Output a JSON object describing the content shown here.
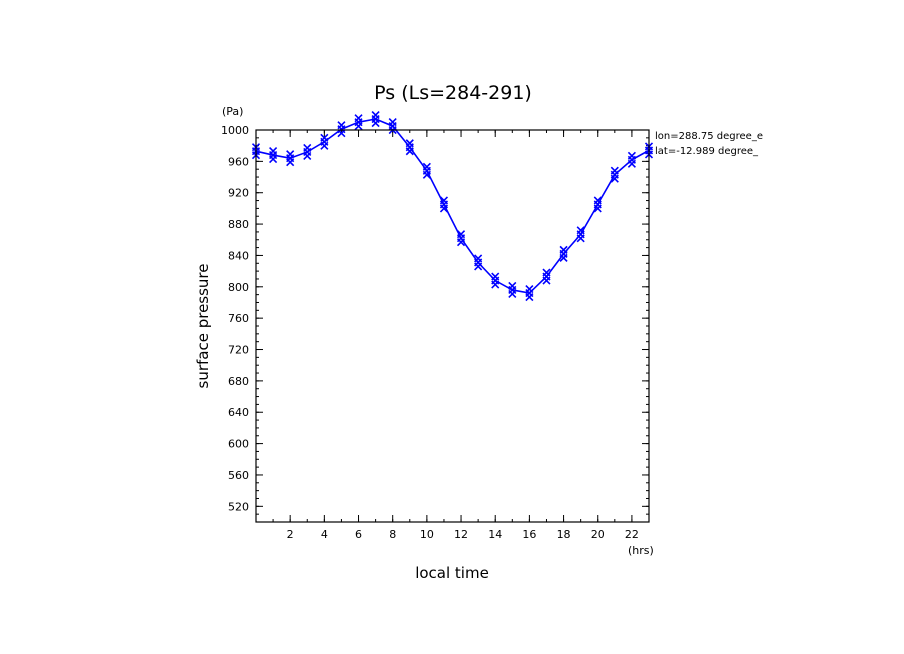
{
  "chart_data": {
    "type": "line",
    "title": "Ps (Ls=284-291)",
    "xlabel": "local time",
    "ylabel": "surface pressure",
    "x_unit": "(hrs)",
    "y_unit": "(Pa)",
    "xlim": [
      0,
      23
    ],
    "ylim": [
      500,
      1000
    ],
    "x_ticks": [
      2,
      4,
      6,
      8,
      10,
      12,
      14,
      16,
      18,
      20,
      22
    ],
    "y_ticks": [
      520,
      560,
      600,
      640,
      680,
      720,
      760,
      800,
      840,
      880,
      920,
      960,
      1000
    ],
    "info": [
      "lon=288.75 degree_e",
      "lat=-12.989 degree_"
    ],
    "line_color": "#0000ff",
    "marker": "x",
    "series": [
      {
        "x": [
          0,
          1,
          2,
          3,
          4,
          5,
          6,
          7,
          8,
          9,
          10,
          11,
          12,
          13,
          14,
          15,
          16,
          17,
          18,
          19,
          20,
          21,
          22,
          23
        ],
        "values": [
          973,
          968,
          964,
          972,
          985,
          1001,
          1010,
          1014,
          1005,
          978,
          948,
          905,
          862,
          831,
          808,
          796,
          792,
          813,
          842,
          867,
          905,
          943,
          962,
          974
        ]
      }
    ]
  }
}
